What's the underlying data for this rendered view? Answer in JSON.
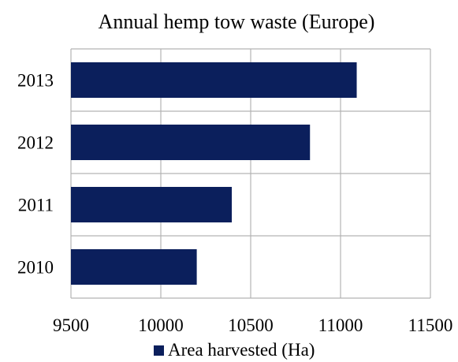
{
  "chart_data": {
    "type": "bar",
    "orientation": "horizontal",
    "title": "Annual hemp tow waste (Europe)",
    "categories": [
      "2010",
      "2011",
      "2012",
      "2013"
    ],
    "series": [
      {
        "name": "Area harvested (Ha)",
        "values": [
          10200,
          10395,
          10830,
          11090
        ]
      }
    ],
    "xlim": [
      9500,
      11500
    ],
    "x_ticks": [
      "9500",
      "10000",
      "10500",
      "11000",
      "11500"
    ],
    "grid": true,
    "legend_position": "bottom",
    "bar_color": "#0b1f5c",
    "grid_color": "#b3b3b3"
  }
}
